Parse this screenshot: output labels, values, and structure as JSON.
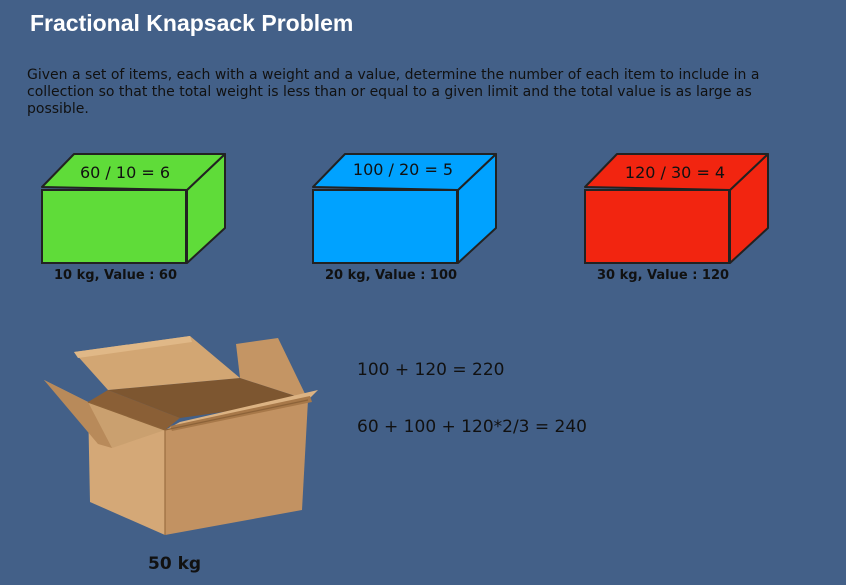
{
  "title": "Fractional Knapsack Problem",
  "description": "Given a set of items, each with a weight and a value, determine the number of each item to include in a collection so that the total weight is less than or equal to a given limit and the total value is as large as possible.",
  "items": [
    {
      "ratio_label": "60 / 10 = 6",
      "caption": "10 kg, Value : 60",
      "color": "#5fdc39"
    },
    {
      "ratio_label": "100 / 20 = 5",
      "caption": "20 kg, Value : 100",
      "color": "#00a2ff"
    },
    {
      "ratio_label": "120 / 30 = 4",
      "caption": "30 kg, Value : 120",
      "color": "#f22510"
    }
  ],
  "knapsack": {
    "capacity_label": "50 kg",
    "icon": "cardboard-box-icon"
  },
  "equations": [
    "100 + 120 = 220",
    "60 + 100 + 120*2/3 = 240"
  ]
}
